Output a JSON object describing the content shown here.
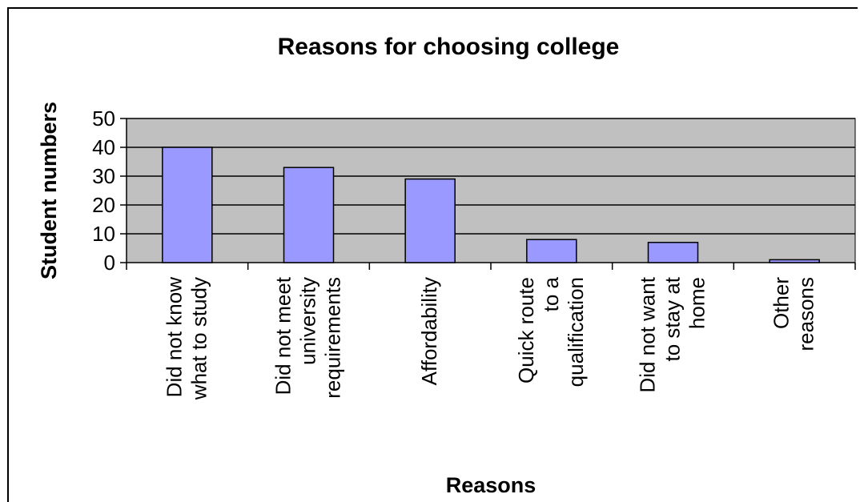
{
  "chart_data": {
    "type": "bar",
    "title": "Reasons for choosing college",
    "xlabel": "Reasons",
    "ylabel": "Student numbers",
    "categories": [
      [
        "Did  not know",
        "what to study"
      ],
      [
        "Did not meet",
        "university",
        "requirements"
      ],
      [
        "Affordability"
      ],
      [
        "Quick route",
        "to a",
        "qualification"
      ],
      [
        "Did not want",
        "to stay at",
        "home"
      ],
      [
        "Other",
        "reasons"
      ]
    ],
    "values": [
      40,
      33,
      29,
      8,
      7,
      1
    ],
    "ylim": [
      0,
      50
    ],
    "yticks": [
      0,
      10,
      20,
      30,
      40,
      50
    ],
    "grid": true,
    "legend": "none",
    "colors": {
      "bar": "#9999ff",
      "plot_background": "#c0c0c0",
      "gridline": "#000000"
    }
  }
}
